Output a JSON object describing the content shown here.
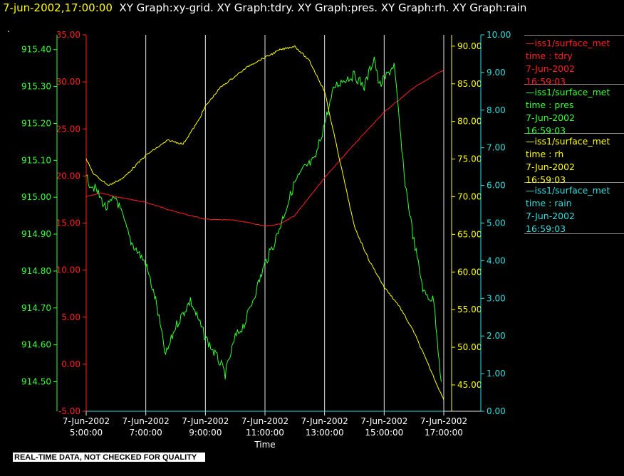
{
  "header": {
    "timestamp": "7-jun-2002,17:00:00",
    "graphs": "XY Graph:xy-grid.  XY Graph:tdry.  XY Graph:pres.  XY Graph:rh.  XY Graph:rain",
    "dot": "."
  },
  "legend": [
    {
      "name": "iss1/surface_met",
      "var": "time : tdry",
      "date": "7-Jun-2002",
      "time": "16:59:03",
      "color": "#ff2020"
    },
    {
      "name": "iss1/surface_met",
      "var": "time : pres",
      "date": "7-Jun-2002",
      "time": "16:59:03",
      "color": "#33ff33"
    },
    {
      "name": "iss1/surface_met",
      "var": "time : rh",
      "date": "7-Jun-2002",
      "time": "16:59:03",
      "color": "#ffff00"
    },
    {
      "name": "iss1/surface_met",
      "var": "time : rain",
      "date": "7-Jun-2002",
      "time": "16:59:03",
      "color": "#33dddd"
    }
  ],
  "footer": {
    "quality_note": "REAL-TIME DATA, NOT CHECKED FOR QUALITY"
  },
  "chart_data": {
    "type": "line",
    "xlabel": "Time",
    "x_ticks": [
      {
        "date": "7-Jun-2002",
        "time": "5:00:00"
      },
      {
        "date": "7-Jun-2002",
        "time": "7:00:00"
      },
      {
        "date": "7-Jun-2002",
        "time": "9:00:00"
      },
      {
        "date": "7-Jun-2002",
        "time": "11:00:00"
      },
      {
        "date": "7-Jun-2002",
        "time": "13:00:00"
      },
      {
        "date": "7-Jun-2002",
        "time": "15:00:00"
      },
      {
        "date": "7-Jun-2002",
        "time": "17:00:00"
      }
    ],
    "xlim": [
      "05:00",
      "17:00"
    ],
    "grid": "vertical",
    "legend_position": "right",
    "axes": [
      {
        "series": "tdry",
        "color": "#ff2020",
        "ylim": [
          -5,
          35
        ],
        "ticks": [
          "35.00",
          "30.00",
          "25.00",
          "20.00",
          "15.00",
          "10.00",
          "5.00",
          "0.00",
          "-5.00"
        ]
      },
      {
        "series": "pres",
        "color": "#33ff33",
        "ylim": [
          914.42,
          915.44
        ],
        "ticks": [
          "915.40",
          "915.30",
          "915.20",
          "915.10",
          "915.00",
          "914.90",
          "914.80",
          "914.70",
          "914.60",
          "914.50"
        ]
      },
      {
        "series": "rh",
        "color": "#ffff00",
        "ylim": [
          41.5,
          91.5
        ],
        "ticks": [
          "90.00",
          "85.00",
          "80.00",
          "75.00",
          "70.00",
          "65.00",
          "60.00",
          "55.00",
          "50.00",
          "45.00"
        ]
      },
      {
        "series": "rain",
        "color": "#33dddd",
        "ylim": [
          0,
          10.0
        ],
        "ticks": [
          "10.00",
          "9.00",
          "8.00",
          "7.00",
          "6.00",
          "5.00",
          "4.00",
          "3.00",
          "2.00",
          "1.00",
          "0.00"
        ]
      }
    ],
    "series": [
      {
        "name": "tdry",
        "color": "#ff2020",
        "x": [
          "05:00",
          "05:30",
          "06:00",
          "07:00",
          "08:00",
          "09:00",
          "10:00",
          "11:00",
          "11:30",
          "12:00",
          "13:00",
          "14:00",
          "15:00",
          "16:00",
          "17:00"
        ],
        "y": [
          17.8,
          18.2,
          17.8,
          17.2,
          16.2,
          15.4,
          15.3,
          14.7,
          14.9,
          15.8,
          19.8,
          23.4,
          26.8,
          29.4,
          31.3
        ]
      },
      {
        "name": "pres",
        "color": "#33ff33",
        "x": [
          "05:00",
          "05:20",
          "05:40",
          "06:00",
          "06:30",
          "07:00",
          "07:20",
          "07:40",
          "08:00",
          "08:30",
          "09:00",
          "09:30",
          "09:40",
          "10:00",
          "10:20",
          "10:40",
          "11:00",
          "11:20",
          "11:40",
          "12:00",
          "12:20",
          "12:40",
          "13:00",
          "13:20",
          "13:40",
          "14:00",
          "14:20",
          "14:40",
          "14:50",
          "15:00",
          "15:20",
          "15:40",
          "16:00",
          "16:20",
          "16:40",
          "16:55"
        ],
        "y": [
          915.05,
          915.02,
          914.97,
          915.0,
          914.88,
          914.82,
          914.72,
          914.57,
          914.65,
          914.72,
          914.62,
          914.55,
          914.52,
          914.62,
          914.66,
          914.74,
          914.82,
          914.88,
          914.96,
          915.04,
          915.08,
          915.1,
          915.2,
          915.3,
          915.32,
          915.33,
          915.3,
          915.38,
          915.3,
          915.32,
          915.36,
          915.06,
          914.88,
          914.74,
          914.72,
          914.5
        ]
      },
      {
        "name": "rh",
        "color": "#ffff00",
        "x": [
          "05:00",
          "05:15",
          "05:45",
          "06:15",
          "07:00",
          "07:45",
          "08:15",
          "08:45",
          "09:00",
          "09:30",
          "10:00",
          "10:30",
          "11:00",
          "11:30",
          "12:00",
          "12:30",
          "13:00",
          "13:30",
          "14:00",
          "14:30",
          "15:00",
          "15:30",
          "16:00",
          "16:30",
          "17:00"
        ],
        "y": [
          75.0,
          73.0,
          71.5,
          72.5,
          75.5,
          77.5,
          77.0,
          80.0,
          82.0,
          84.5,
          86.0,
          87.5,
          88.5,
          89.5,
          90.0,
          88.0,
          84.0,
          75.0,
          66.0,
          61.5,
          58.0,
          55.5,
          52.0,
          47.5,
          43.0
        ]
      },
      {
        "name": "rain",
        "color": "#33dddd",
        "x": [
          "05:00",
          "17:00"
        ],
        "y": [
          0.0,
          0.0
        ]
      }
    ]
  }
}
